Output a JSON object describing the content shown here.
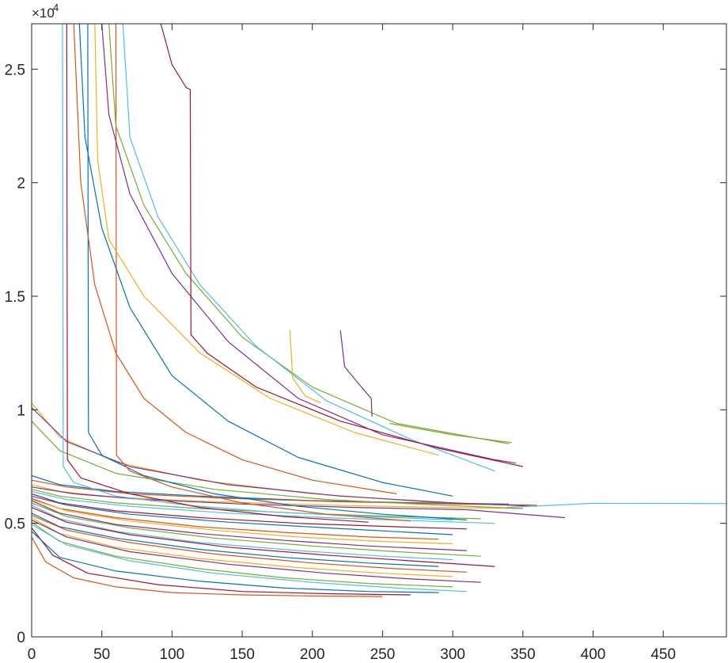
{
  "chart_data": {
    "type": "line",
    "title": "",
    "xlabel": "",
    "ylabel": "",
    "xlim": [
      0,
      495
    ],
    "ylim": [
      0,
      27000
    ],
    "x_ticks": [
      0,
      50,
      100,
      150,
      200,
      250,
      300,
      350,
      400,
      450
    ],
    "x_tick_labels": [
      "0",
      "50",
      "100",
      "150",
      "200",
      "250",
      "300",
      "350",
      "400",
      "450"
    ],
    "y_ticks": [
      0,
      5000,
      10000,
      15000,
      20000,
      25000
    ],
    "y_tick_labels": [
      "0",
      "0.5",
      "1",
      "1.5",
      "2",
      "2.5"
    ],
    "y_exponent_label": "×10",
    "y_exponent_power": "4",
    "grid": false,
    "legend": "none",
    "colors": [
      "#0072bd",
      "#d95319",
      "#edb120",
      "#7e2f8e",
      "#77ac30",
      "#4dbeee",
      "#a2142f"
    ],
    "series": [
      {
        "x": [
          0,
          20,
          60,
          120,
          200,
          280,
          340
        ],
        "y": [
          7100,
          6700,
          6400,
          6200,
          6000,
          5900,
          5850
        ]
      },
      {
        "x": [
          0,
          25,
          70,
          140,
          220,
          300,
          360
        ],
        "y": [
          6900,
          6600,
          6300,
          6100,
          5950,
          5850,
          5800
        ]
      },
      {
        "x": [
          0,
          20,
          60,
          130,
          210,
          290,
          350
        ],
        "y": [
          6700,
          6400,
          6150,
          5950,
          5800,
          5700,
          5650
        ]
      },
      {
        "x": [
          0,
          30,
          80,
          150,
          230,
          310,
          380
        ],
        "y": [
          6600,
          6300,
          6050,
          5850,
          5700,
          5600,
          5250
        ]
      },
      {
        "x": [
          0,
          20,
          60,
          120,
          190,
          260,
          320
        ],
        "y": [
          6500,
          6200,
          5900,
          5650,
          5450,
          5300,
          5200
        ]
      },
      {
        "x": [
          0,
          25,
          70,
          140,
          210,
          280,
          330
        ],
        "y": [
          6400,
          6050,
          5750,
          5450,
          5250,
          5100,
          5000
        ]
      },
      {
        "x": [
          0,
          20,
          60,
          120,
          190,
          260,
          310
        ],
        "y": [
          6300,
          5900,
          5550,
          5250,
          5000,
          4850,
          4750
        ]
      },
      {
        "x": [
          0,
          25,
          70,
          140,
          210,
          270,
          300
        ],
        "y": [
          6200,
          5800,
          5400,
          5050,
          4800,
          4600,
          4500
        ]
      },
      {
        "x": [
          0,
          20,
          60,
          120,
          180,
          240,
          290
        ],
        "y": [
          6100,
          5650,
          5250,
          4850,
          4600,
          4400,
          4300
        ]
      },
      {
        "x": [
          0,
          25,
          70,
          130,
          190,
          250,
          300
        ],
        "y": [
          6050,
          5550,
          5100,
          4700,
          4400,
          4200,
          4100
        ]
      },
      {
        "x": [
          0,
          20,
          60,
          120,
          180,
          240,
          310
        ],
        "y": [
          6000,
          5450,
          4950,
          4550,
          4250,
          4000,
          3800
        ]
      },
      {
        "x": [
          0,
          25,
          70,
          130,
          200,
          260,
          320
        ],
        "y": [
          5900,
          5300,
          4800,
          4350,
          4000,
          3750,
          3550
        ]
      },
      {
        "x": [
          0,
          20,
          60,
          120,
          190,
          250,
          300
        ],
        "y": [
          5800,
          5200,
          4650,
          4150,
          3800,
          3550,
          3400
        ]
      },
      {
        "x": [
          0,
          25,
          70,
          140,
          210,
          270,
          330
        ],
        "y": [
          5700,
          5050,
          4500,
          3950,
          3600,
          3350,
          3100
        ]
      },
      {
        "x": [
          0,
          20,
          60,
          120,
          180,
          240,
          290
        ],
        "y": [
          5450,
          4850,
          4350,
          3850,
          3500,
          3250,
          3100
        ]
      },
      {
        "x": [
          0,
          25,
          70,
          130,
          200,
          260,
          310
        ],
        "y": [
          5350,
          4700,
          4150,
          3650,
          3250,
          3000,
          2850
        ]
      },
      {
        "x": [
          0,
          20,
          60,
          120,
          190,
          250,
          300
        ],
        "y": [
          5250,
          4550,
          3950,
          3450,
          3050,
          2800,
          2650
        ]
      },
      {
        "x": [
          0,
          25,
          70,
          140,
          210,
          270,
          320
        ],
        "y": [
          5150,
          4400,
          3750,
          3200,
          2800,
          2550,
          2400
        ]
      },
      {
        "x": [
          0,
          20,
          60,
          120,
          180,
          240,
          300
        ],
        "y": [
          5050,
          4200,
          3550,
          3000,
          2600,
          2350,
          2200
        ]
      },
      {
        "x": [
          0,
          25,
          70,
          130,
          200,
          260,
          310
        ],
        "y": [
          4950,
          4050,
          3350,
          2800,
          2400,
          2150,
          2000
        ]
      },
      {
        "x": [
          0,
          15,
          40,
          90,
          150,
          210,
          270
        ],
        "y": [
          4800,
          3600,
          2800,
          2300,
          2000,
          1900,
          1850
        ]
      },
      {
        "x": [
          0,
          20,
          60,
          120,
          180,
          240,
          290
        ],
        "y": [
          4650,
          3500,
          2900,
          2450,
          2150,
          2000,
          1950
        ]
      },
      {
        "x": [
          0,
          10,
          30,
          60,
          100,
          150,
          200,
          250
        ],
        "y": [
          4400,
          3300,
          2600,
          2200,
          1950,
          1850,
          1800,
          1780
        ]
      },
      {
        "x": [
          0,
          20,
          60,
          120,
          200,
          280,
          340
        ],
        "y": [
          10300,
          8800,
          7700,
          6900,
          6300,
          5950,
          5800
        ]
      },
      {
        "x": [
          0,
          25,
          70,
          140,
          220,
          300,
          360
        ],
        "y": [
          10100,
          8600,
          7500,
          6700,
          6200,
          5900,
          5750
        ]
      },
      {
        "x": [
          0,
          20,
          60,
          130,
          210,
          290,
          350
        ],
        "y": [
          9500,
          8200,
          7200,
          6500,
          6050,
          5800,
          5650
        ]
      },
      {
        "x": [
          22,
          22.5,
          30,
          60,
          110,
          170,
          240,
          300
        ],
        "y": [
          27000,
          7500,
          6800,
          6200,
          5800,
          5500,
          5300,
          5150
        ]
      },
      {
        "x": [
          25,
          25.5,
          35,
          70,
          120,
          180,
          240
        ],
        "y": [
          27000,
          7800,
          7000,
          6300,
          5700,
          5300,
          5050
        ]
      },
      {
        "x": [
          40,
          40.5,
          50,
          80,
          130,
          190,
          250,
          310
        ],
        "y": [
          27000,
          9000,
          8000,
          7100,
          6300,
          5750,
          5400,
          5150
        ]
      },
      {
        "x": [
          60,
          60.5,
          70,
          100,
          150,
          210,
          270
        ],
        "y": [
          27000,
          8000,
          7300,
          6600,
          5900,
          5400,
          5100
        ]
      },
      {
        "x": [
          45,
          47,
          55,
          80,
          120,
          170,
          230,
          290
        ],
        "y": [
          27000,
          21000,
          17500,
          15000,
          12500,
          10500,
          9000,
          8000
        ]
      },
      {
        "x": [
          50,
          55,
          70,
          100,
          140,
          190,
          250,
          330,
          345
        ],
        "y": [
          27000,
          23000,
          19500,
          16000,
          13000,
          10500,
          8900,
          7800,
          7650
        ]
      },
      {
        "x": [
          55,
          60,
          80,
          110,
          150,
          200,
          260,
          340
        ],
        "y": [
          27000,
          22500,
          19000,
          16000,
          13200,
          11000,
          9400,
          8500
        ]
      },
      {
        "x": [
          65,
          70,
          90,
          120,
          160,
          210,
          270,
          330
        ],
        "y": [
          27000,
          22000,
          18500,
          15500,
          12800,
          10400,
          8700,
          7300
        ]
      },
      {
        "x": [
          92,
          100,
          110,
          113,
          113.5,
          125,
          160,
          220,
          290,
          350
        ],
        "y": [
          27000,
          25200,
          24200,
          24100,
          13300,
          12500,
          11000,
          9500,
          8300,
          7500
        ]
      },
      {
        "x": [
          34,
          38,
          50,
          70,
          100,
          140,
          190,
          250,
          300
        ],
        "y": [
          27000,
          22000,
          18000,
          14500,
          11500,
          9500,
          7900,
          6800,
          6200
        ]
      },
      {
        "x": [
          30,
          35,
          45,
          60,
          80,
          110,
          150,
          200,
          260
        ],
        "y": [
          27000,
          20000,
          15500,
          12500,
          10500,
          9000,
          7800,
          6900,
          6300
        ]
      },
      {
        "x": [
          184,
          186,
          195,
          206
        ],
        "y": [
          13500,
          11400,
          10600,
          10300
        ]
      },
      {
        "x": [
          220,
          223,
          235,
          242,
          242.5
        ],
        "y": [
          13500,
          11900,
          11000,
          10500,
          9700
        ]
      },
      {
        "x": [
          255,
          300,
          342
        ],
        "y": [
          9400,
          8900,
          8550
        ]
      },
      {
        "x": [
          338,
          400,
          495
        ],
        "y": [
          5700,
          5880,
          5870
        ]
      }
    ]
  }
}
